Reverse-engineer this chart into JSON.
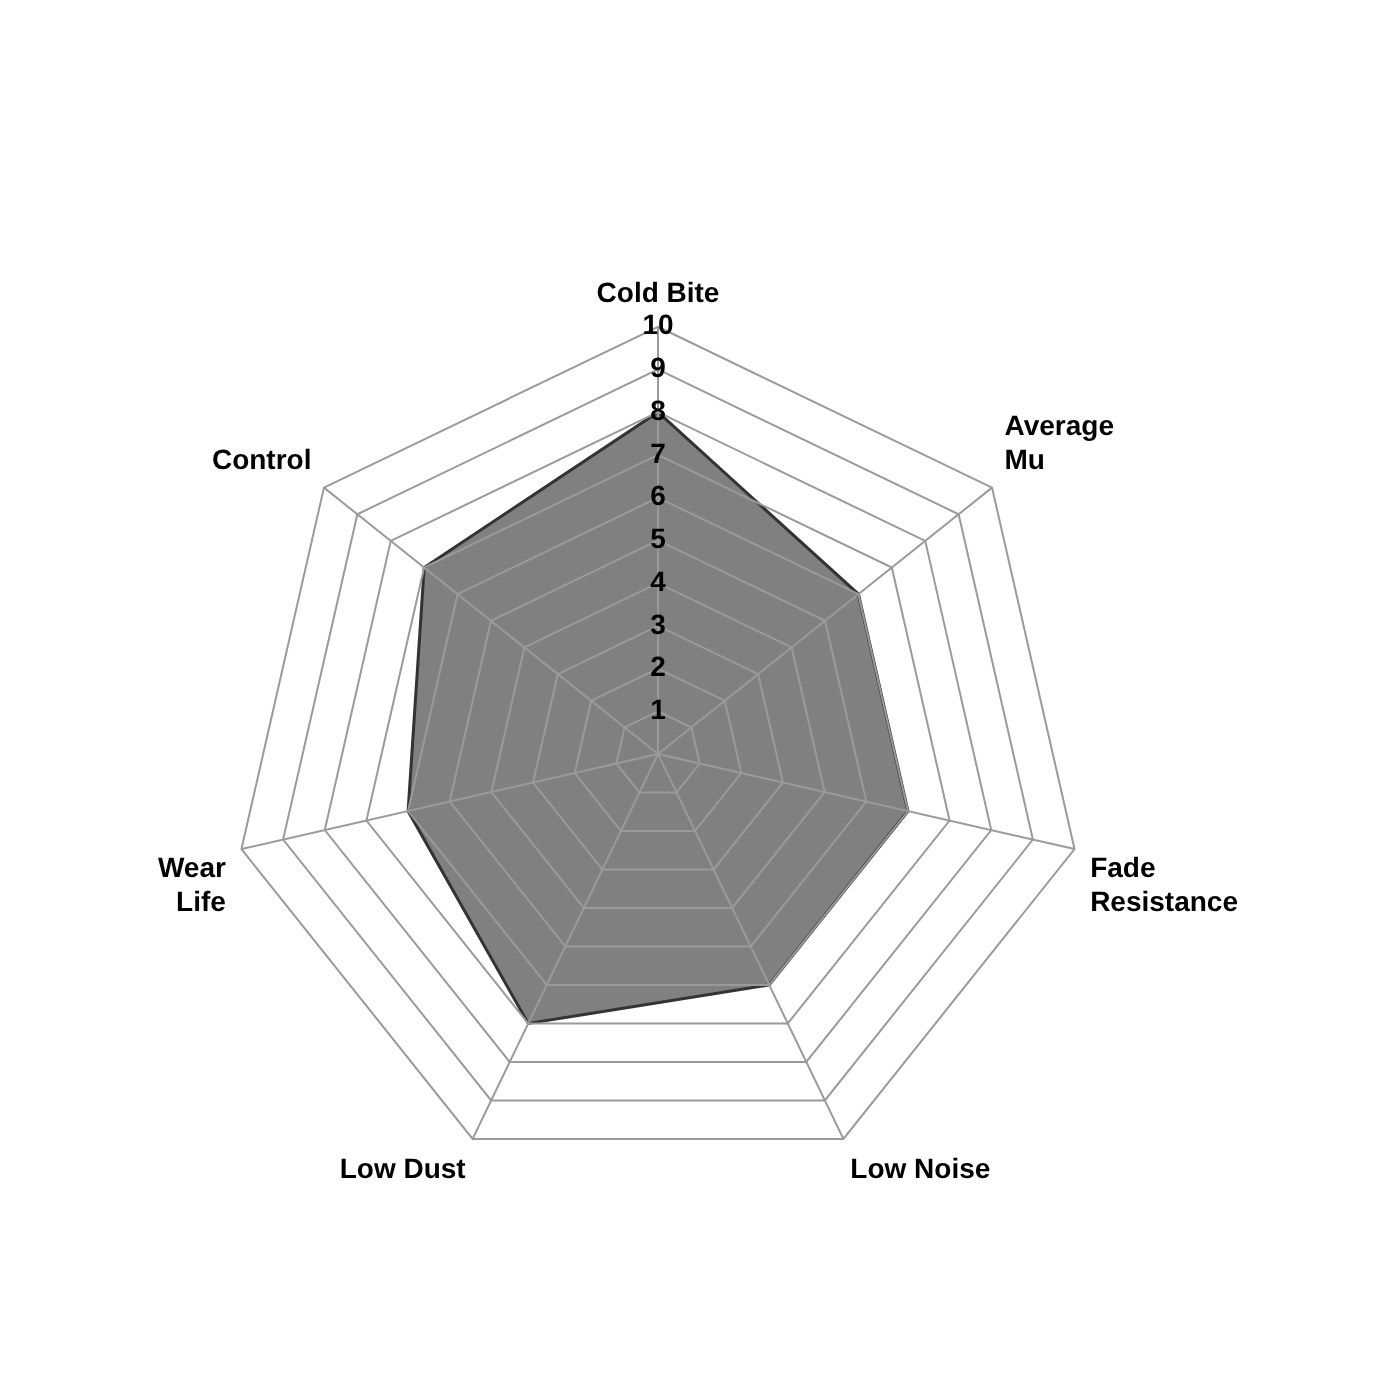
{
  "chart_data": {
    "type": "radar",
    "categories": [
      "Cold Bite",
      "Average\nMu",
      "Fade\nResistance",
      "Low Noise",
      "Low Dust",
      "Wear\nLife",
      "Control"
    ],
    "series": [
      {
        "color": "#808080",
        "values": [
          8,
          6,
          6,
          6,
          7,
          6,
          7
        ]
      }
    ],
    "ylim": [
      0,
      10
    ],
    "yticks": [
      1,
      2,
      3,
      4,
      5,
      6,
      7,
      8,
      9,
      10
    ],
    "grid": true,
    "legend": false,
    "marker": "none"
  }
}
